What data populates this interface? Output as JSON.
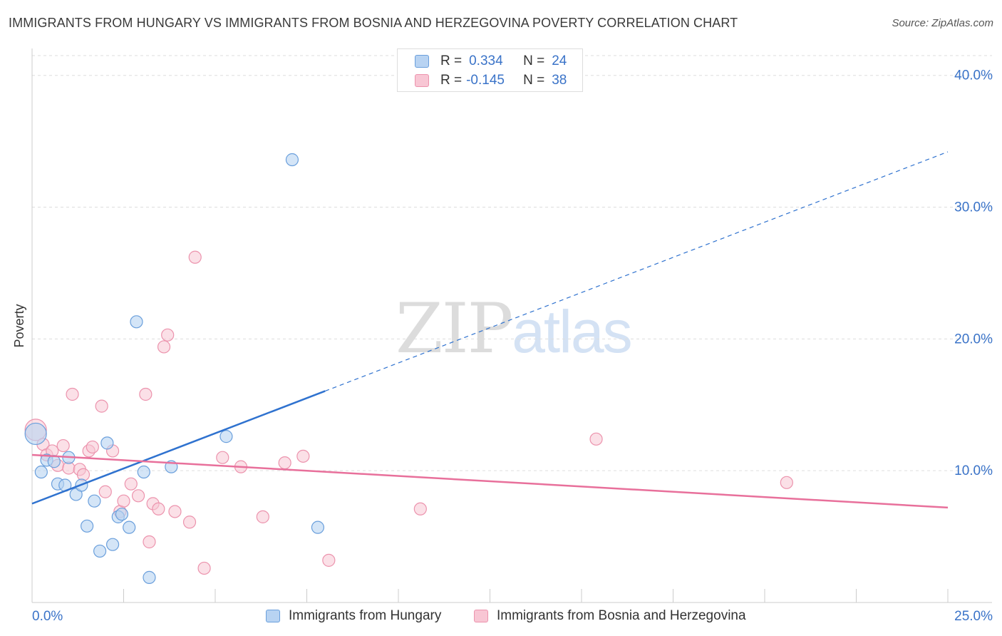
{
  "title": "IMMIGRANTS FROM HUNGARY VS IMMIGRANTS FROM BOSNIA AND HERZEGOVINA POVERTY CORRELATION CHART",
  "source": "Source: ZipAtlas.com",
  "watermark": {
    "part1": "ZIP",
    "part2": "atlas"
  },
  "legend": {
    "rows": [
      {
        "r_label": "R =",
        "r_value": "0.334",
        "n_label": "N =",
        "n_value": "24"
      },
      {
        "r_label": "R =",
        "r_value": "-0.145",
        "n_label": "N =",
        "n_value": "38"
      }
    ]
  },
  "bottom_legend": {
    "hungary": "Immigrants from Hungary",
    "bosnia": "Immigrants from Bosnia and Herzegovina"
  },
  "colors": {
    "hungary_fill": "#b8d3f2",
    "hungary_stroke": "#6a9fdc",
    "hungary_line": "#2f72cf",
    "bosnia_fill": "#f8c6d4",
    "bosnia_stroke": "#ec93ad",
    "bosnia_line": "#e8709b",
    "grid": "#dddddd",
    "tick_label": "#3a73c8"
  },
  "chart_data": {
    "type": "scatter",
    "title": "IMMIGRANTS FROM HUNGARY VS IMMIGRANTS FROM BOSNIA AND HERZEGOVINA POVERTY CORRELATION CHART",
    "xlabel": "",
    "ylabel": "Poverty",
    "xlim": [
      0,
      25
    ],
    "ylim": [
      0,
      41.5
    ],
    "x_tick_labels": [
      "0.0%",
      "25.0%"
    ],
    "y_ticks": [
      10,
      20,
      30,
      40
    ],
    "y_tick_labels": [
      "10.0%",
      "20.0%",
      "30.0%",
      "40.0%"
    ],
    "series": [
      {
        "name": "Immigrants from Hungary",
        "r": 0.334,
        "n": 24,
        "trend": {
          "x0": 0,
          "y0": 7.5,
          "x_solid_end": 8.0,
          "x1": 25,
          "y1": 34.2
        },
        "points": [
          {
            "x": 0.1,
            "y": 12.8,
            "big": true
          },
          {
            "x": 0.25,
            "y": 9.9
          },
          {
            "x": 0.4,
            "y": 10.8
          },
          {
            "x": 0.6,
            "y": 10.7
          },
          {
            "x": 0.7,
            "y": 9.0
          },
          {
            "x": 0.9,
            "y": 8.9
          },
          {
            "x": 1.0,
            "y": 11.0
          },
          {
            "x": 1.2,
            "y": 8.2
          },
          {
            "x": 1.35,
            "y": 8.9
          },
          {
            "x": 1.5,
            "y": 5.8
          },
          {
            "x": 1.7,
            "y": 7.7
          },
          {
            "x": 1.85,
            "y": 3.9
          },
          {
            "x": 2.05,
            "y": 12.1
          },
          {
            "x": 2.2,
            "y": 4.4
          },
          {
            "x": 2.35,
            "y": 6.5
          },
          {
            "x": 2.45,
            "y": 6.7
          },
          {
            "x": 2.65,
            "y": 5.7
          },
          {
            "x": 2.85,
            "y": 21.3
          },
          {
            "x": 3.05,
            "y": 9.9
          },
          {
            "x": 3.2,
            "y": 1.9
          },
          {
            "x": 3.8,
            "y": 10.3
          },
          {
            "x": 5.3,
            "y": 12.6
          },
          {
            "x": 7.1,
            "y": 33.6
          },
          {
            "x": 7.8,
            "y": 5.7
          }
        ]
      },
      {
        "name": "Immigrants from Bosnia and Herzegovina",
        "r": -0.145,
        "n": 38,
        "trend": {
          "x0": 0,
          "y0": 11.2,
          "x1": 25,
          "y1": 7.2
        },
        "points": [
          {
            "x": 0.1,
            "y": 13.1,
            "big": true
          },
          {
            "x": 0.3,
            "y": 12.0
          },
          {
            "x": 0.4,
            "y": 11.2
          },
          {
            "x": 0.55,
            "y": 11.5
          },
          {
            "x": 0.7,
            "y": 10.4
          },
          {
            "x": 0.85,
            "y": 11.9
          },
          {
            "x": 1.0,
            "y": 10.2
          },
          {
            "x": 1.1,
            "y": 15.8
          },
          {
            "x": 1.3,
            "y": 10.1
          },
          {
            "x": 1.4,
            "y": 9.7
          },
          {
            "x": 1.55,
            "y": 11.5
          },
          {
            "x": 1.65,
            "y": 11.8
          },
          {
            "x": 1.9,
            "y": 14.9
          },
          {
            "x": 2.0,
            "y": 8.4
          },
          {
            "x": 2.2,
            "y": 11.5
          },
          {
            "x": 2.4,
            "y": 6.9
          },
          {
            "x": 2.5,
            "y": 7.7
          },
          {
            "x": 2.7,
            "y": 9.0
          },
          {
            "x": 2.9,
            "y": 8.1
          },
          {
            "x": 3.1,
            "y": 15.8
          },
          {
            "x": 3.2,
            "y": 4.6
          },
          {
            "x": 3.3,
            "y": 7.5
          },
          {
            "x": 3.45,
            "y": 7.1
          },
          {
            "x": 3.6,
            "y": 19.4
          },
          {
            "x": 3.7,
            "y": 20.3
          },
          {
            "x": 3.9,
            "y": 6.9
          },
          {
            "x": 4.3,
            "y": 6.1
          },
          {
            "x": 4.45,
            "y": 26.2
          },
          {
            "x": 4.7,
            "y": 2.6
          },
          {
            "x": 5.2,
            "y": 11.0
          },
          {
            "x": 5.7,
            "y": 10.3
          },
          {
            "x": 6.3,
            "y": 6.5
          },
          {
            "x": 6.9,
            "y": 10.6
          },
          {
            "x": 7.4,
            "y": 11.1
          },
          {
            "x": 8.1,
            "y": 3.2
          },
          {
            "x": 10.6,
            "y": 7.1
          },
          {
            "x": 15.4,
            "y": 12.4
          },
          {
            "x": 20.6,
            "y": 9.1
          }
        ]
      }
    ]
  }
}
